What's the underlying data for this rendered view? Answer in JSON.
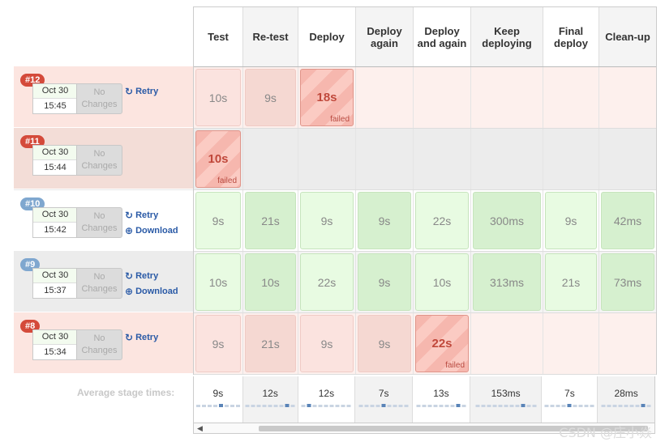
{
  "stages": [
    "Test",
    "Re-test",
    "Deploy",
    "Deploy again",
    "Deploy and again",
    "Keep deploying",
    "Final deploy",
    "Clean-up"
  ],
  "builds": [
    {
      "id": "#12",
      "date": "Oct 30",
      "time": "15:45",
      "changes": "No Changes",
      "status": "failed",
      "actions": [
        "Retry"
      ],
      "cells": [
        {
          "v": "10s",
          "s": "warn"
        },
        {
          "v": "9s",
          "s": "warn"
        },
        {
          "v": "18s",
          "s": "failed",
          "flag": "failed"
        },
        {
          "v": "",
          "s": "empty"
        },
        {
          "v": "",
          "s": "empty"
        },
        {
          "v": "",
          "s": "empty"
        },
        {
          "v": "",
          "s": "empty"
        },
        {
          "v": "",
          "s": "empty"
        }
      ]
    },
    {
      "id": "#11",
      "date": "Oct 30",
      "time": "15:44",
      "changes": "No Changes",
      "status": "failed",
      "actions": [],
      "cells": [
        {
          "v": "10s",
          "s": "failed",
          "flag": "failed"
        },
        {
          "v": "",
          "s": "empty"
        },
        {
          "v": "",
          "s": "empty"
        },
        {
          "v": "",
          "s": "empty"
        },
        {
          "v": "",
          "s": "empty"
        },
        {
          "v": "",
          "s": "empty"
        },
        {
          "v": "",
          "s": "empty"
        },
        {
          "v": "",
          "s": "empty"
        }
      ]
    },
    {
      "id": "#10",
      "date": "Oct 30",
      "time": "15:42",
      "changes": "No Changes",
      "status": "success",
      "actions": [
        "Retry",
        "Download"
      ],
      "cells": [
        {
          "v": "9s",
          "s": "ok"
        },
        {
          "v": "21s",
          "s": "ok"
        },
        {
          "v": "9s",
          "s": "ok"
        },
        {
          "v": "9s",
          "s": "ok"
        },
        {
          "v": "22s",
          "s": "ok"
        },
        {
          "v": "300ms",
          "s": "ok"
        },
        {
          "v": "9s",
          "s": "ok"
        },
        {
          "v": "42ms",
          "s": "ok"
        }
      ]
    },
    {
      "id": "#9",
      "date": "Oct 30",
      "time": "15:37",
      "changes": "No Changes",
      "status": "success",
      "actions": [
        "Retry",
        "Download"
      ],
      "cells": [
        {
          "v": "10s",
          "s": "ok"
        },
        {
          "v": "10s",
          "s": "ok"
        },
        {
          "v": "22s",
          "s": "ok"
        },
        {
          "v": "9s",
          "s": "ok"
        },
        {
          "v": "10s",
          "s": "ok"
        },
        {
          "v": "313ms",
          "s": "ok"
        },
        {
          "v": "21s",
          "s": "ok"
        },
        {
          "v": "73ms",
          "s": "ok"
        }
      ]
    },
    {
      "id": "#8",
      "date": "Oct 30",
      "time": "15:34",
      "changes": "No Changes",
      "status": "failed",
      "actions": [
        "Retry"
      ],
      "cells": [
        {
          "v": "9s",
          "s": "warn"
        },
        {
          "v": "21s",
          "s": "warn"
        },
        {
          "v": "9s",
          "s": "warn"
        },
        {
          "v": "9s",
          "s": "warn"
        },
        {
          "v": "22s",
          "s": "failed",
          "flag": "failed"
        },
        {
          "v": "",
          "s": "empty"
        },
        {
          "v": "",
          "s": "empty"
        },
        {
          "v": "",
          "s": "empty"
        }
      ]
    }
  ],
  "average": {
    "label": "Average stage times:",
    "values": [
      "9s",
      "12s",
      "12s",
      "7s",
      "13s",
      "153ms",
      "7s",
      "28ms"
    ]
  },
  "watermark": "CSDN @庄小焱",
  "colors": {
    "failed": "#f6b7ae",
    "success": "#e8fbe2",
    "link": "#2a5aa6",
    "badge_failed": "#d44a3a",
    "badge_success": "#7fa7cf"
  }
}
